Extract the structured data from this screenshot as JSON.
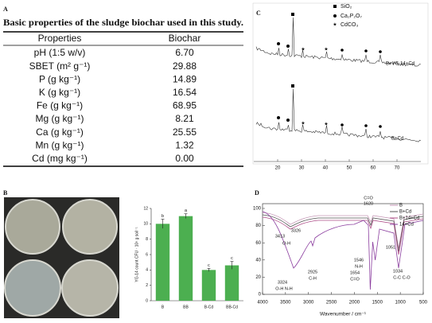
{
  "panel_a": {
    "label": "A",
    "title": "Basic properties of the sludge biochar used in this study.",
    "header": [
      "Properties",
      "Biochar"
    ],
    "rows": [
      [
        "pH (1:5 w/v)",
        "6.70"
      ],
      [
        "SBET (m² g⁻¹)",
        "29.88"
      ],
      [
        "P (g kg⁻¹)",
        "14.89"
      ],
      [
        "K (g kg⁻¹)",
        "16.54"
      ],
      [
        "Fe (g kg⁻¹)",
        "68.95"
      ],
      [
        "Mg (g kg⁻¹)",
        "8.21"
      ],
      [
        "Ca (g kg⁻¹)",
        "25.55"
      ],
      [
        "Mn (g kg⁻¹)",
        "1.32"
      ],
      [
        "Cd (mg kg⁻¹)",
        "0.00"
      ]
    ]
  },
  "panel_b": {
    "label": "B",
    "chart": {
      "type": "bar",
      "ylabel": "YG-14 count CFU · 10⁸ g soil⁻¹",
      "categories": [
        "B",
        "BB",
        "B-Cd",
        "BB-Cd"
      ],
      "values": [
        10,
        11,
        4,
        4.6
      ],
      "errors": [
        0.6,
        0.3,
        0.2,
        0.5
      ],
      "annotations": [
        "b",
        "a",
        "c",
        "c"
      ],
      "color": "#4caf50",
      "ylim": [
        0,
        12
      ],
      "yticks": [
        0,
        2,
        4,
        6,
        8,
        10,
        12
      ]
    }
  },
  "panel_c": {
    "label": "C",
    "legend": [
      "SiO₂",
      "Ca₂P₂O₇",
      "CdCO₃"
    ],
    "curve_labels": [
      "B+YG-14+Cd",
      "B+Cd"
    ],
    "xlim": [
      10,
      80
    ],
    "xticks": [
      20,
      30,
      40,
      50,
      60,
      70
    ]
  },
  "panel_d": {
    "label": "D",
    "xlabel": "Wavenumber / cm⁻¹",
    "xlim": [
      4000,
      500
    ],
    "xticks": [
      4000,
      3500,
      3000,
      2500,
      2000,
      1500,
      1000,
      500
    ],
    "ylim": [
      0,
      100
    ],
    "yticks": [
      0,
      20,
      40,
      60,
      80,
      100
    ],
    "legend": [
      {
        "name": "B",
        "color": "#c79ab8"
      },
      {
        "name": "B+Cd",
        "color": "#555555"
      },
      {
        "name": "B+14+Cd",
        "color": "#b0508a"
      },
      {
        "name": "14+Cd",
        "color": "#8a3c9e"
      }
    ],
    "annotations": [
      "C=O",
      "1620",
      "3413",
      "O-H",
      "3326",
      "2925",
      "C-H",
      "3324",
      "O-H  N-H",
      "1654",
      "C=O",
      "1546",
      "N-H",
      "1051",
      "1034",
      "C-C  C-O"
    ]
  }
}
